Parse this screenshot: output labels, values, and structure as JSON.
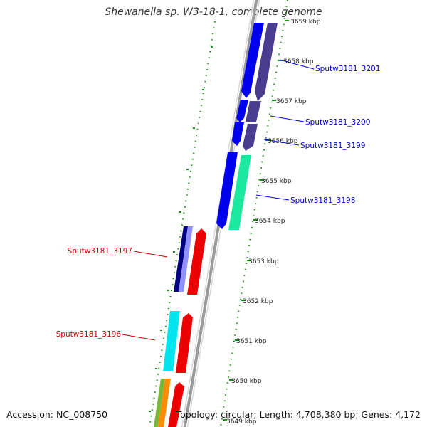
{
  "title": "Shewanella sp. W3-18-1, complete genome",
  "accession": "Accession: NC_008750",
  "topology": "Topology: circular; Length: 4,708,380 bp; Genes: 4,172",
  "ticks": [
    "3659 kbp",
    "3658 kbp",
    "3657 kbp",
    "3656 kbp",
    "3655 kbp",
    "3654 kbp",
    "3653 kbp",
    "3652 kbp",
    "3651 kbp",
    "3650 kbp",
    "3649 kbp"
  ],
  "genes_forward": [
    {
      "label": "Sputw3181_3201",
      "start_kbp": 3658.5,
      "end_kbp": 3659.5
    },
    {
      "label": "Sputw3181_3200",
      "start_kbp": 3656.4,
      "end_kbp": 3657.0
    },
    {
      "label": "Sputw3181_3199",
      "start_kbp": 3656.1,
      "end_kbp": 3656.4
    },
    {
      "label": "Sputw3181_3198",
      "start_kbp": 3654.2,
      "end_kbp": 3655.6
    }
  ],
  "genes_reverse": [
    {
      "label": "Sputw3181_3197",
      "start_kbp": 3652.7,
      "end_kbp": 3654.0
    },
    {
      "label": "Sputw3181_3196",
      "start_kbp": 3650.4,
      "end_kbp": 3651.9
    }
  ],
  "colors": {
    "forward_label": "#0000cc",
    "reverse_label": "#cc0000",
    "tick_mark": "#1a8a1a",
    "backbone": "#888888",
    "cds_blue": "#0000ee",
    "cds_purple": "#4a3d8f",
    "cds_red": "#ee0000",
    "cds_cyan": "#00e5ee",
    "cds_teal": "#1ee8a0",
    "cds_navy": "#000080",
    "cds_lavender": "#8f8fff"
  }
}
